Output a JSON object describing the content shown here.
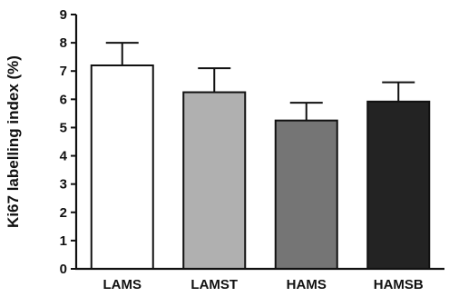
{
  "chart_data": {
    "type": "bar",
    "title": "",
    "xlabel": "",
    "ylabel": "Ki67 labelling index (%)",
    "categories": [
      "LAMS",
      "LAMST",
      "HAMS",
      "HAMSB"
    ],
    "values": [
      7.2,
      6.25,
      5.25,
      5.92
    ],
    "error_upper": [
      8.0,
      7.1,
      5.88,
      6.6
    ],
    "bar_colors": [
      "#ffffff",
      "#b0b0b0",
      "#757575",
      "#232323"
    ],
    "ylim": [
      0,
      9
    ],
    "yticks": [
      "0",
      "1",
      "2",
      "3",
      "4",
      "5",
      "6",
      "7",
      "8",
      "9"
    ],
    "grid": false,
    "legend": "none"
  }
}
